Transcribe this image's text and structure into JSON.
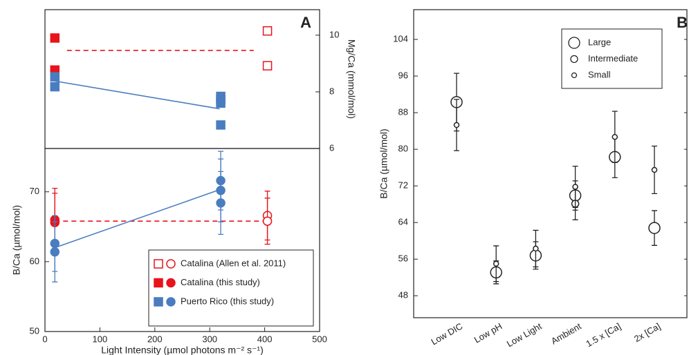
{
  "chart_data": [
    {
      "type": "scatter",
      "panel_label": "A",
      "y_label": "Mg/Ca (mmol/mol)",
      "y_axis_side": "right",
      "xlim": [
        0,
        500
      ],
      "ylim": [
        6,
        10.9
      ],
      "yticks": [
        6,
        8,
        10
      ],
      "lines": [
        {
          "color": "#e8131b",
          "dashed": true,
          "x": [
            40,
            380
          ],
          "y": [
            9.46,
            9.46
          ]
        },
        {
          "color": "#4a7cc0",
          "dashed": false,
          "x": [
            18,
            318
          ],
          "y": [
            8.38,
            7.4
          ]
        }
      ],
      "series": [
        {
          "color": "#e8131b",
          "marker": "square",
          "filled": false,
          "x": [
            405,
            405
          ],
          "values": [
            10.15,
            8.92
          ]
        },
        {
          "color": "#e8131b",
          "marker": "square",
          "filled": true,
          "x": [
            18,
            18
          ],
          "values": [
            9.9,
            8.77
          ]
        },
        {
          "color": "#4a7cc0",
          "marker": "square",
          "filled": true,
          "x": [
            18,
            18,
            320,
            320,
            320,
            320
          ],
          "values": [
            8.53,
            8.18,
            7.84,
            7.72,
            7.6,
            6.83
          ]
        }
      ]
    },
    {
      "type": "scatter",
      "y_label": "B/Ca (µmol/mol)",
      "x_label": "Light Intensity (µmol photons m⁻² s⁻¹)",
      "y_axis_side": "left",
      "xlim": [
        0,
        500
      ],
      "xticks": [
        0,
        100,
        200,
        300,
        400,
        500
      ],
      "ylim": [
        50,
        76.2
      ],
      "yticks": [
        50,
        60,
        70
      ],
      "legend": "lower right",
      "lines": [
        {
          "color": "#e8131b",
          "dashed": true,
          "x": [
            18,
            400
          ],
          "y": [
            65.8,
            65.8
          ]
        },
        {
          "color": "#4a7cc0",
          "dashed": false,
          "x": [
            18,
            318
          ],
          "y": [
            62,
            70.3
          ]
        }
      ],
      "series": [
        {
          "name": "Catalina (Allen et al. 2011)",
          "color": "#e8131b",
          "marker": "circle",
          "filled": false,
          "x": [
            405,
            405
          ],
          "values": [
            66.6,
            65.8
          ],
          "errors": [
            3.5,
            3.3
          ]
        },
        {
          "name": "Catalina (this study)",
          "color": "#e8131b",
          "marker": "circle",
          "filled": true,
          "x": [
            18,
            18
          ],
          "values": [
            66.0,
            65.6
          ],
          "errors": [
            4.5,
            4.2
          ]
        },
        {
          "name": "Puerto Rico (this study)",
          "color": "#4a7cc0",
          "marker": "circle",
          "filled": true,
          "x": [
            18,
            18,
            320,
            320,
            320
          ],
          "values": [
            62.6,
            61.4,
            71.6,
            70.2,
            68.4
          ],
          "errors": [
            4.0,
            4.3,
            4.2,
            4.5,
            4.5
          ]
        }
      ]
    },
    {
      "type": "scatter",
      "panel_label": "B",
      "y_label": "B/Ca (µmol/mol)",
      "y_axis_side": "left",
      "categories": [
        "Low DIC",
        "Low pH",
        "Low Light",
        "Ambient",
        "1.5 x [Ca]",
        "2x [Ca]"
      ],
      "ylim": [
        43.2,
        110.5
      ],
      "yticks": [
        48,
        56,
        64,
        72,
        80,
        88,
        96,
        104
      ],
      "legend": "upper right",
      "series": [
        {
          "name": "Large",
          "color": "#222222",
          "marker": "circle",
          "filled": false,
          "values": [
            90.3,
            53.1,
            56.8,
            69.9,
            78.3,
            62.8
          ],
          "errors": [
            6.3,
            2.5,
            3.0,
            3.2,
            4.5,
            3.8
          ]
        },
        {
          "name": "Intermediate",
          "color": "#222222",
          "marker": "circle",
          "filled": false,
          "values": [
            null,
            null,
            null,
            68.1,
            null,
            null
          ],
          "errors": [
            null,
            null,
            null,
            3.5,
            null,
            null
          ]
        },
        {
          "name": "Small",
          "color": "#222222",
          "marker": "circle",
          "filled": false,
          "values": [
            85.3,
            55.0,
            58.3,
            71.8,
            82.7,
            75.5
          ],
          "errors": [
            5.6,
            3.9,
            4.0,
            4.5,
            5.6,
            5.2
          ]
        }
      ]
    }
  ]
}
